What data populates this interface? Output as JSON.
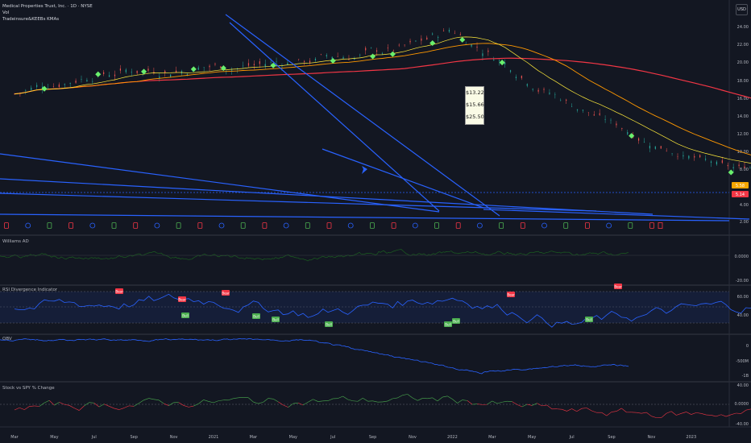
{
  "header": {
    "title": "Medical Properties Trust, Inc. · 1D · NYSE",
    "vol_label": "Vol",
    "overlay_label": "Tradeinsure&KEEBs KMAs"
  },
  "currency": "USD",
  "tooltip": {
    "values": [
      "$13.22",
      "$15.66",
      "$25.50"
    ]
  },
  "price_axis": {
    "ticks": [
      "24.00",
      "22.00",
      "20.00",
      "18.00",
      "16.00",
      "14.00",
      "12.00",
      "10.00",
      "8.00",
      "6.00",
      "4.00",
      "2.00"
    ],
    "badges": [
      {
        "text": "5.58",
        "color": "#f7a600"
      },
      {
        "text": "5.14",
        "color": "#f23645"
      }
    ]
  },
  "time_axis": [
    "Mar",
    "May",
    "Jul",
    "Sep",
    "Nov",
    "2021",
    "Mar",
    "May",
    "Jul",
    "Sep",
    "Nov",
    "2022",
    "Mar",
    "May",
    "Jul",
    "Sep",
    "Nov",
    "2023",
    "Mar",
    "May",
    "Jul",
    "Sep",
    "Nov",
    "2024",
    "Mar",
    "May",
    "Jul",
    "Sep",
    "Nov",
    "2025",
    "Mar",
    "May",
    "Jul",
    "Sep",
    "Nov",
    "2026",
    "Mar"
  ],
  "panes": {
    "williams": {
      "title": "Williams AD",
      "ticks": [
        "0.0000",
        "-20.00"
      ]
    },
    "rsi": {
      "title": "RSI Divergence Indicator",
      "ticks": [
        "60.00",
        "40.00"
      ],
      "bull_label": "Bull",
      "bear_label": "Bear"
    },
    "obv": {
      "title": "OBV",
      "ticks": [
        "0",
        "-500M",
        "-1B"
      ]
    },
    "spy": {
      "title": "Stock vs SPY % Change",
      "ticks": [
        "40.00",
        "0.0000",
        "-40.00"
      ]
    }
  },
  "colors": {
    "background": "#131722",
    "trendline": "#2962ff",
    "ma_red": "#f23645",
    "ma_orange": "#ff9800",
    "ma_yellow": "#ffeb3b",
    "bull": "#4caf50",
    "bear": "#f23645",
    "rsi_line": "#2962ff",
    "williams_line": "#1b5e20",
    "obv_line": "#2962ff"
  },
  "chart_data": [
    {
      "type": "line",
      "pane": "price",
      "x": [
        "2020-03",
        "2020-07",
        "2020-11",
        "2021-03",
        "2021-07",
        "2021-11",
        "2022-01",
        "2022-03",
        "2022-07",
        "2022-11",
        "2023-03",
        "2023-07",
        "2023-11",
        "2024-03",
        "2024-07",
        "2024-11",
        "2025-03",
        "2025-05"
      ],
      "series": [
        {
          "values": [
            16.5,
            19.0,
            19.5,
            19.8,
            20.5,
            21.5,
            23.5,
            21.0,
            15.5,
            11.0,
            8.0,
            8.5,
            4.5,
            3.5,
            5.5,
            4.2,
            5.6,
            5.6
          ]
        }
      ],
      "ylim": [
        2,
        24
      ]
    },
    {
      "type": "line",
      "pane": "rsi",
      "x": [
        "2020-03",
        "2021-01",
        "2021-06",
        "2022-01",
        "2022-07",
        "2023-01",
        "2023-07",
        "2024-01",
        "2024-07",
        "2025-01",
        "2025-04"
      ],
      "series": [
        {
          "values": [
            55,
            62,
            48,
            66,
            38,
            52,
            60,
            37,
            58,
            42,
            68
          ]
        }
      ],
      "ylim": [
        30,
        75
      ]
    },
    {
      "type": "line",
      "pane": "spy",
      "x": [
        "2020-03",
        "2021-01",
        "2022-01",
        "2022-07",
        "2023-01",
        "2023-07",
        "2024-01",
        "2024-07",
        "2025-01",
        "2025-04"
      ],
      "series": [
        {
          "values": [
            -5,
            5,
            10,
            -15,
            -20,
            -10,
            -25,
            20,
            10,
            -5
          ]
        }
      ],
      "ylim": [
        -40,
        40
      ]
    }
  ]
}
